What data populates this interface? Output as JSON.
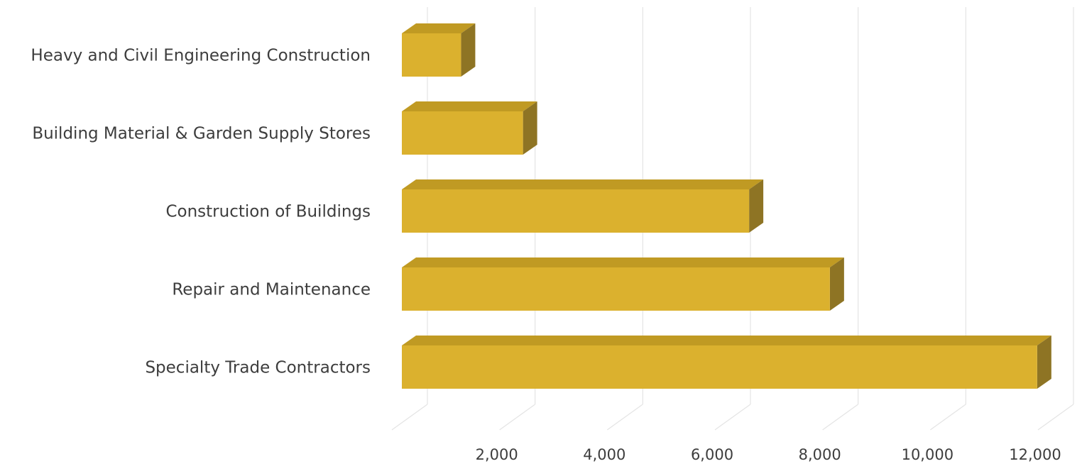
{
  "chart_data": {
    "type": "bar",
    "orientation": "horizontal",
    "style": "3d",
    "categories": [
      "Heavy and Civil Engineering Construction",
      "Building Material & Garden Supply Stores",
      "Construction of Buildings",
      "Repair and Maintenance",
      "Specialty Trade Contractors"
    ],
    "values": [
      1100,
      2250,
      6450,
      7950,
      11800
    ],
    "xlim": [
      0,
      12000
    ],
    "xticks": [
      2000,
      4000,
      6000,
      8000,
      10000,
      12000
    ],
    "xtick_labels": [
      "2,000",
      "4,000",
      "6,000",
      "8,000",
      "10,000",
      "12,000"
    ],
    "title": "",
    "xlabel": "",
    "ylabel": "",
    "grid": true,
    "legend": "none",
    "colors": {
      "bar_front": "#DBB12E",
      "bar_top": "#C09A23",
      "bar_side": "#8E7424",
      "gridline": "#E4E4E4",
      "text": "#3D3D3D"
    }
  }
}
